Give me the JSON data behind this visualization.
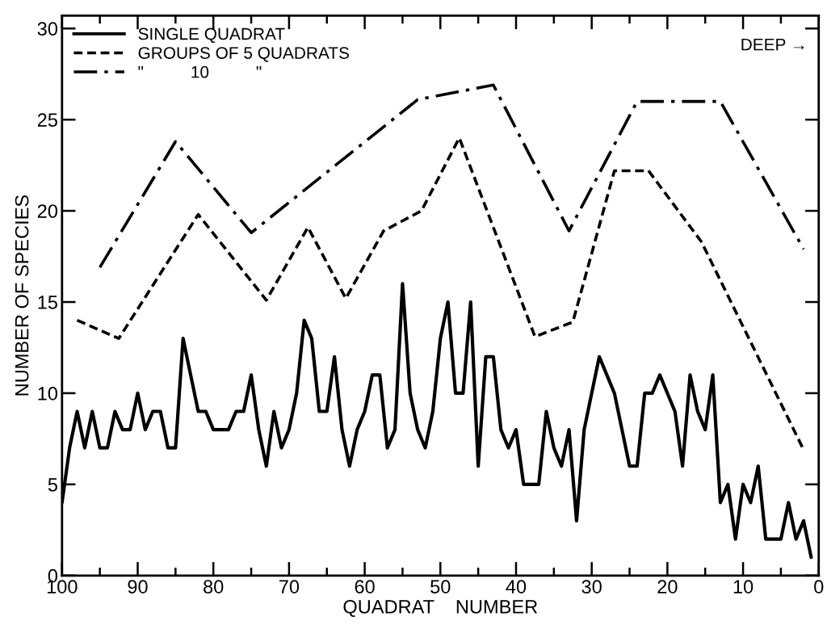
{
  "chart_data": {
    "type": "line",
    "xlabel": "QUADRAT    NUMBER",
    "ylabel": "NUMBER OF SPECIES",
    "annotations": [
      "DEEP →"
    ],
    "xlim": [
      100,
      0
    ],
    "ylim": [
      0,
      30.7
    ],
    "xticks": [
      100,
      {
        "value": 95,
        "label": null
      },
      90,
      {
        "value": 85,
        "label": null
      },
      80,
      {
        "value": 75,
        "label": null
      },
      70,
      {
        "value": 65,
        "label": null
      },
      60,
      {
        "value": 55,
        "label": null
      },
      50,
      {
        "value": 45,
        "label": null
      },
      40,
      {
        "value": 35,
        "label": null
      },
      30,
      {
        "value": 25,
        "label": null
      },
      20,
      {
        "value": 15,
        "label": null
      },
      10,
      {
        "value": 5,
        "label": null
      },
      0
    ],
    "yticks": [
      0,
      5,
      10,
      15,
      20,
      25,
      30
    ],
    "grid": false,
    "legend": "top left",
    "marker": "none",
    "series": [
      {
        "name": "SINGLE QUADRAT",
        "color": "#000000",
        "line_style": "solid",
        "x": [
          100,
          99,
          98,
          97,
          96,
          95,
          94,
          93,
          92,
          91,
          90,
          89,
          88,
          87,
          86,
          85,
          84,
          83,
          82,
          81,
          80,
          79,
          78,
          77,
          76,
          75,
          74,
          73,
          72,
          71,
          70,
          69,
          68,
          67,
          66,
          65,
          64,
          63,
          62,
          61,
          60,
          59,
          58,
          57,
          56,
          55,
          54,
          53,
          52,
          51,
          50,
          49,
          48,
          47,
          46,
          45,
          44,
          43,
          42,
          41,
          40,
          39,
          38,
          37,
          36,
          35,
          34,
          33,
          32,
          31,
          30,
          29,
          28,
          27,
          26,
          25,
          24,
          23,
          22,
          21,
          20,
          19,
          18,
          17,
          16,
          15,
          14,
          13,
          12,
          11,
          10,
          9,
          8,
          7,
          6,
          5,
          4,
          3,
          2,
          1
        ],
        "values": [
          4,
          7,
          9,
          7,
          9,
          7,
          7,
          9,
          8,
          8,
          10,
          8,
          9,
          9,
          7,
          7,
          13,
          11,
          9,
          9,
          8,
          8,
          8,
          9,
          9,
          11,
          8,
          6,
          9,
          7,
          8,
          10,
          14,
          13,
          9,
          9,
          12,
          8,
          6,
          8,
          9,
          11,
          11,
          7,
          8,
          16,
          10,
          8,
          7,
          9,
          13,
          15,
          10,
          10,
          15,
          6,
          12,
          12,
          8,
          7,
          8,
          5,
          5,
          5,
          9,
          7,
          6,
          8,
          3,
          8,
          10,
          12,
          11,
          10,
          8,
          6,
          6,
          10,
          10,
          11,
          10,
          9,
          6,
          11,
          9,
          8,
          11,
          4,
          5,
          2,
          5,
          4,
          6,
          2,
          2,
          2,
          4,
          2,
          3,
          1
        ]
      },
      {
        "name": "GROUPS OF 5 QUADRATS",
        "color": "#000000",
        "line_style": "dashed",
        "x": [
          98,
          92.5,
          82,
          73,
          67.5,
          62.5,
          57.5,
          52.5,
          47.5,
          37.5,
          32.5,
          27,
          22.5,
          15.5,
          2
        ],
        "values": [
          14,
          13,
          19.8,
          15.1,
          19.1,
          15.2,
          18.9,
          20,
          24,
          13.1,
          13.9,
          22.2,
          22.2,
          18.3,
          6.9
        ]
      },
      {
        "name": "\"          10          \"",
        "color": "#000000",
        "line_style": "dashdot",
        "x": [
          95,
          85,
          75,
          53,
          43,
          33,
          24,
          13,
          2
        ],
        "values": [
          16.9,
          23.8,
          18.8,
          26.1,
          26.9,
          18.9,
          26,
          26,
          17.9
        ]
      }
    ]
  }
}
